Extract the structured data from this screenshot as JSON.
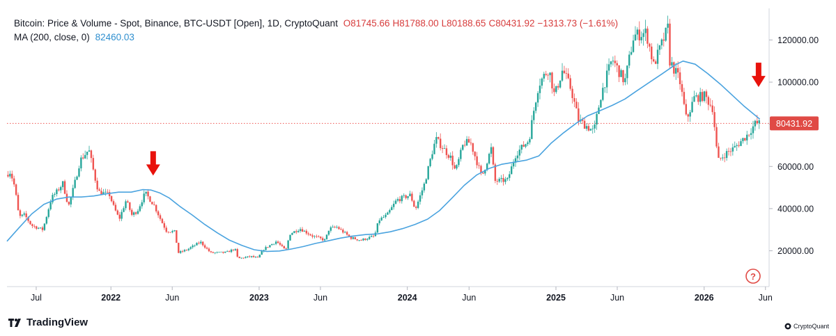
{
  "legend": {
    "title": "Bitcoin: Price & Volume - Spot, Binance, BTC-USDT [Open], 1D, CryptoQuant",
    "open_label": "O",
    "open": "81745.66",
    "high_label": "H",
    "high": "81788.00",
    "low_label": "L",
    "low": "80188.65",
    "close_label": "C",
    "close": "80431.92",
    "change": "−1313.73 (−1.61%)",
    "ma_label": "MA (200, close, 0)",
    "ma_value": "82460.03"
  },
  "branding": {
    "left": "TradingView",
    "right": "CryptoQuant"
  },
  "help_icon": "question-circle-icon",
  "colors": {
    "up": "#26a69a",
    "down": "#ef5350",
    "ma": "#4aa3df",
    "arrow": "#e8120c",
    "price_line": "#ef5350",
    "price_badge": "#e04a45"
  },
  "chart_data": {
    "type": "candlestick",
    "y_axis": {
      "ticks": [
        20000,
        40000,
        60000,
        80000,
        100000,
        120000
      ],
      "tick_labels": [
        "20000.00",
        "40000.00",
        "60000.00",
        "80000.00",
        "100000.00",
        "120000.00"
      ],
      "ylim": [
        3000,
        135000
      ]
    },
    "x_axis": {
      "range": [
        "2021-04-20",
        "2026-06-10"
      ],
      "ticks": [
        {
          "date": "2021-07-01",
          "label": "Jul",
          "bold": false
        },
        {
          "date": "2022-01-01",
          "label": "2022",
          "bold": true
        },
        {
          "date": "2022-06-01",
          "label": "Jun",
          "bold": false
        },
        {
          "date": "2023-01-01",
          "label": "2023",
          "bold": true
        },
        {
          "date": "2023-06-01",
          "label": "Jun",
          "bold": false
        },
        {
          "date": "2024-01-01",
          "label": "2024",
          "bold": true
        },
        {
          "date": "2024-06-01",
          "label": "Jun",
          "bold": false
        },
        {
          "date": "2025-01-01",
          "label": "2025",
          "bold": true
        },
        {
          "date": "2025-06-01",
          "label": "Jun",
          "bold": false
        },
        {
          "date": "2026-01-01",
          "label": "2026",
          "bold": true
        },
        {
          "date": "2026-06-01",
          "label": "Jun",
          "bold": false
        }
      ]
    },
    "last_price": 80431.92,
    "last_price_label": "80431.92",
    "price_path": [
      [
        "2021-04-20",
        56000
      ],
      [
        "2021-05-01",
        57500
      ],
      [
        "2021-05-12",
        50000
      ],
      [
        "2021-05-22",
        36000
      ],
      [
        "2021-06-05",
        37000
      ],
      [
        "2021-06-22",
        32000
      ],
      [
        "2021-07-20",
        30000
      ],
      [
        "2021-08-10",
        45000
      ],
      [
        "2021-08-25",
        48500
      ],
      [
        "2021-09-07",
        52000
      ],
      [
        "2021-09-21",
        41000
      ],
      [
        "2021-10-05",
        51000
      ],
      [
        "2021-10-20",
        63000
      ],
      [
        "2021-11-10",
        68000
      ],
      [
        "2021-11-26",
        54000
      ],
      [
        "2021-12-04",
        48000
      ],
      [
        "2021-12-31",
        46500
      ],
      [
        "2022-01-10",
        41000
      ],
      [
        "2022-01-24",
        35000
      ],
      [
        "2022-02-10",
        44000
      ],
      [
        "2022-02-24",
        37000
      ],
      [
        "2022-03-10",
        39000
      ],
      [
        "2022-03-29",
        47500
      ],
      [
        "2022-04-20",
        41500
      ],
      [
        "2022-05-08",
        34000
      ],
      [
        "2022-05-20",
        29500
      ],
      [
        "2022-06-10",
        29000
      ],
      [
        "2022-06-18",
        19000
      ],
      [
        "2022-07-10",
        20500
      ],
      [
        "2022-08-12",
        24200
      ],
      [
        "2022-09-06",
        19000
      ],
      [
        "2022-10-15",
        19200
      ],
      [
        "2022-11-05",
        21000
      ],
      [
        "2022-11-12",
        16300
      ],
      [
        "2022-12-15",
        17300
      ],
      [
        "2022-12-31",
        16500
      ],
      [
        "2023-01-15",
        20800
      ],
      [
        "2023-02-15",
        24500
      ],
      [
        "2023-03-10",
        20000
      ],
      [
        "2023-03-20",
        28000
      ],
      [
        "2023-04-14",
        30500
      ],
      [
        "2023-05-15",
        27000
      ],
      [
        "2023-06-15",
        25000
      ],
      [
        "2023-06-25",
        30500
      ],
      [
        "2023-07-14",
        31200
      ],
      [
        "2023-08-17",
        26200
      ],
      [
        "2023-09-11",
        25000
      ],
      [
        "2023-10-15",
        27000
      ],
      [
        "2023-10-25",
        34500
      ],
      [
        "2023-11-15",
        37000
      ],
      [
        "2023-12-08",
        44000
      ],
      [
        "2024-01-11",
        46500
      ],
      [
        "2024-01-23",
        39500
      ],
      [
        "2024-02-15",
        52000
      ],
      [
        "2024-03-05",
        67000
      ],
      [
        "2024-03-14",
        73000
      ],
      [
        "2024-04-20",
        64000
      ],
      [
        "2024-05-01",
        57500
      ],
      [
        "2024-05-21",
        71000
      ],
      [
        "2024-06-07",
        71500
      ],
      [
        "2024-07-05",
        55000
      ],
      [
        "2024-07-29",
        69000
      ],
      [
        "2024-08-05",
        53000
      ],
      [
        "2024-09-06",
        53500
      ],
      [
        "2024-09-27",
        66000
      ],
      [
        "2024-10-29",
        72500
      ],
      [
        "2024-11-12",
        89000
      ],
      [
        "2024-11-22",
        99000
      ],
      [
        "2024-12-17",
        106500
      ],
      [
        "2024-12-31",
        93500
      ],
      [
        "2025-01-20",
        106000
      ],
      [
        "2025-02-10",
        96500
      ],
      [
        "2025-02-28",
        82000
      ],
      [
        "2025-04-07",
        76500
      ],
      [
        "2025-04-25",
        94500
      ],
      [
        "2025-05-22",
        111000
      ],
      [
        "2025-06-22",
        100000
      ],
      [
        "2025-07-14",
        122000
      ],
      [
        "2025-08-14",
        123500
      ],
      [
        "2025-09-01",
        108000
      ],
      [
        "2025-10-06",
        125500
      ],
      [
        "2025-10-11",
        110000
      ],
      [
        "2025-11-04",
        101000
      ],
      [
        "2025-11-21",
        82000
      ],
      [
        "2025-12-10",
        92500
      ],
      [
        "2026-01-05",
        93500
      ],
      [
        "2026-01-25",
        87500
      ],
      [
        "2026-02-06",
        62500
      ],
      [
        "2026-02-25",
        66000
      ],
      [
        "2026-03-20",
        69000
      ],
      [
        "2026-04-20",
        75000
      ],
      [
        "2026-05-10",
        80500
      ],
      [
        "2026-05-18",
        80431.92
      ]
    ],
    "ma_200": [
      [
        "2021-04-20",
        24500
      ],
      [
        "2021-05-20",
        31000
      ],
      [
        "2021-06-20",
        37500
      ],
      [
        "2021-07-20",
        42000
      ],
      [
        "2021-08-20",
        44500
      ],
      [
        "2021-09-20",
        45500
      ],
      [
        "2021-10-20",
        45500
      ],
      [
        "2021-11-20",
        46000
      ],
      [
        "2021-12-20",
        47000
      ],
      [
        "2022-01-20",
        47800
      ],
      [
        "2022-02-20",
        47800
      ],
      [
        "2022-03-20",
        49000
      ],
      [
        "2022-04-10",
        48800
      ],
      [
        "2022-05-01",
        47500
      ],
      [
        "2022-05-25",
        45000
      ],
      [
        "2022-06-20",
        41000
      ],
      [
        "2022-07-20",
        37000
      ],
      [
        "2022-08-20",
        32500
      ],
      [
        "2022-09-20",
        28500
      ],
      [
        "2022-10-20",
        25000
      ],
      [
        "2022-11-20",
        22500
      ],
      [
        "2022-12-20",
        20500
      ],
      [
        "2023-01-20",
        19700
      ],
      [
        "2023-02-20",
        19900
      ],
      [
        "2023-03-20",
        20800
      ],
      [
        "2023-04-20",
        22000
      ],
      [
        "2023-05-20",
        23500
      ],
      [
        "2023-06-20",
        24700
      ],
      [
        "2023-07-20",
        26000
      ],
      [
        "2023-08-20",
        27000
      ],
      [
        "2023-09-20",
        27700
      ],
      [
        "2023-10-20",
        28000
      ],
      [
        "2023-11-20",
        29000
      ],
      [
        "2023-12-20",
        30500
      ],
      [
        "2024-01-20",
        32500
      ],
      [
        "2024-02-20",
        35000
      ],
      [
        "2024-03-20",
        39000
      ],
      [
        "2024-04-20",
        45000
      ],
      [
        "2024-05-20",
        51000
      ],
      [
        "2024-06-20",
        56000
      ],
      [
        "2024-07-20",
        59000
      ],
      [
        "2024-08-20",
        61000
      ],
      [
        "2024-09-20",
        62000
      ],
      [
        "2024-10-20",
        63000
      ],
      [
        "2024-11-20",
        65000
      ],
      [
        "2024-12-20",
        71000
      ],
      [
        "2025-01-20",
        76000
      ],
      [
        "2025-02-20",
        80500
      ],
      [
        "2025-03-20",
        84000
      ],
      [
        "2025-04-20",
        86500
      ],
      [
        "2025-05-20",
        89000
      ],
      [
        "2025-06-20",
        92000
      ],
      [
        "2025-07-20",
        96000
      ],
      [
        "2025-08-20",
        100000
      ],
      [
        "2025-09-20",
        104000
      ],
      [
        "2025-10-20",
        108000
      ],
      [
        "2025-11-10",
        110000
      ],
      [
        "2025-12-10",
        108500
      ],
      [
        "2026-01-10",
        104000
      ],
      [
        "2026-02-10",
        99000
      ],
      [
        "2026-03-10",
        94000
      ],
      [
        "2026-04-10",
        88500
      ],
      [
        "2026-05-18",
        82460.03
      ]
    ],
    "annotations": [
      {
        "type": "down-arrow",
        "date": "2022-04-15",
        "value": 57000
      },
      {
        "type": "down-arrow",
        "date": "2026-05-15",
        "value": 99000
      }
    ]
  }
}
